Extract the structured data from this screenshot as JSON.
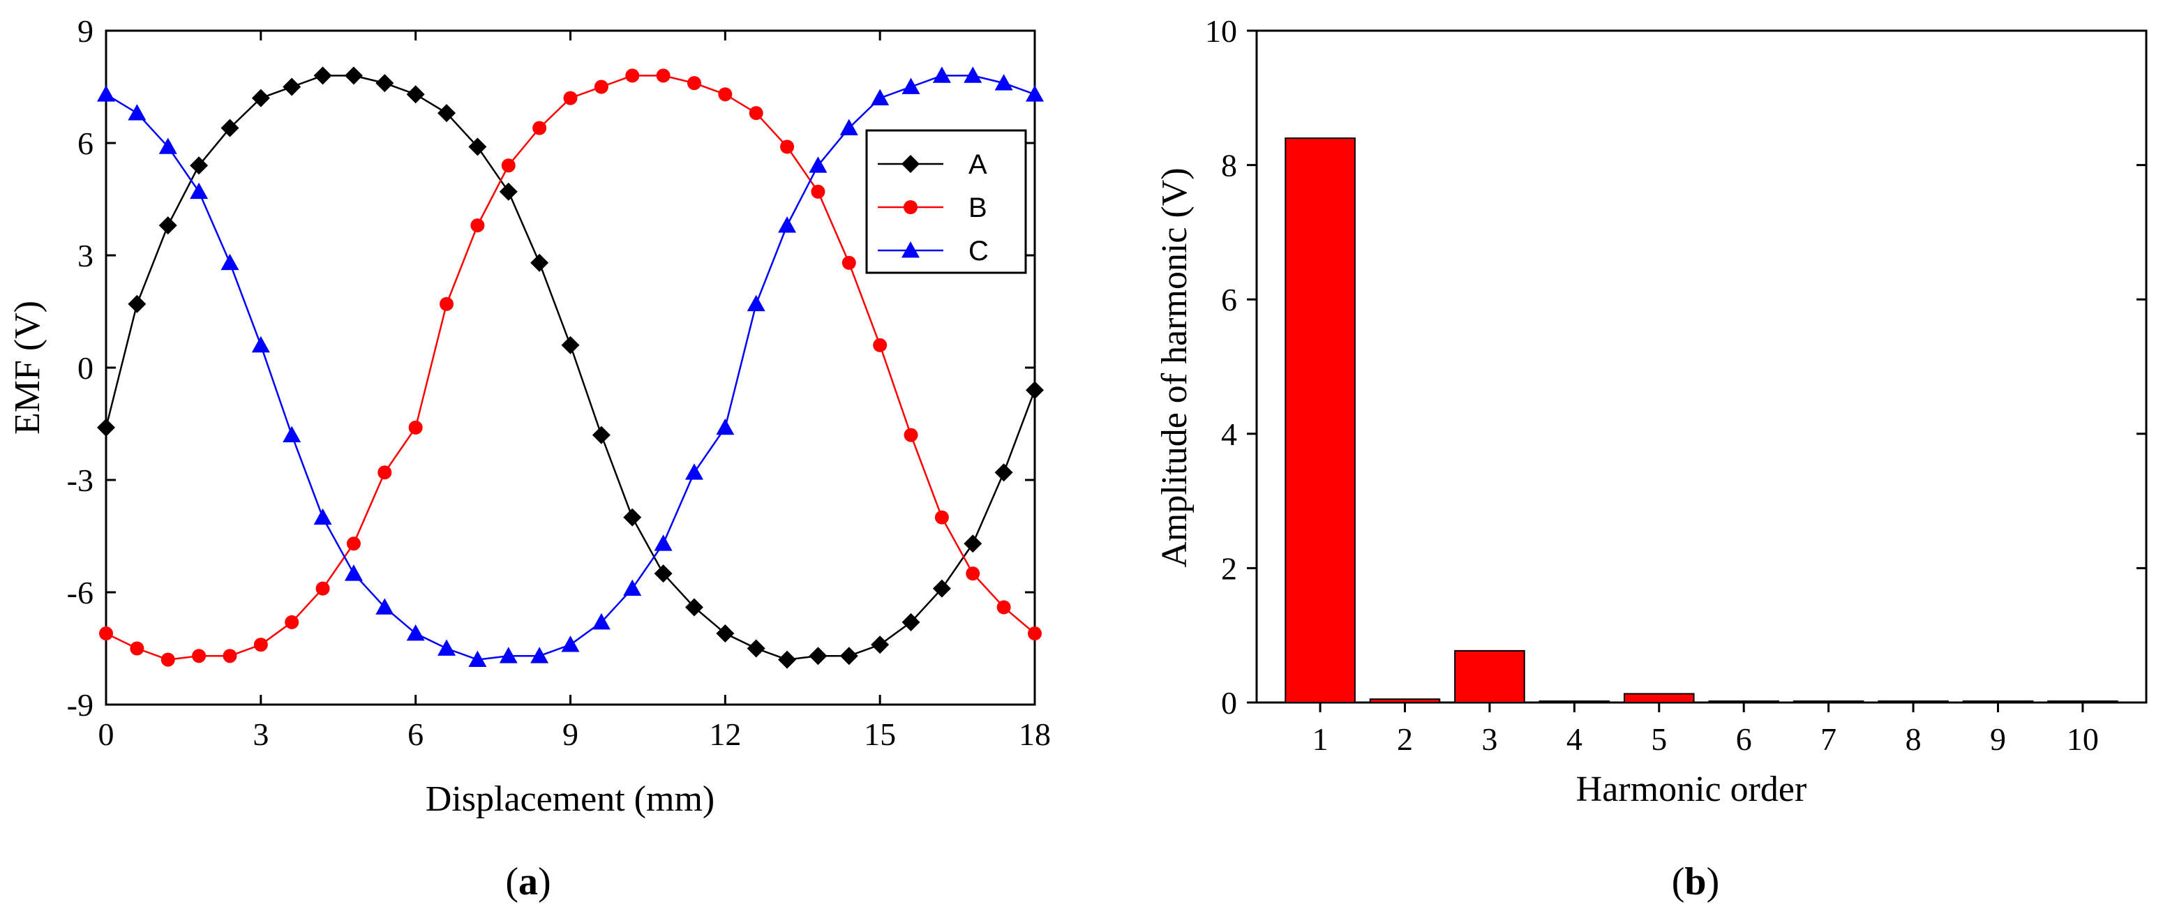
{
  "chart_data": [
    {
      "type": "line",
      "panel_label": "a",
      "title": "",
      "xlabel": "Displacement (mm)",
      "ylabel": "EMF (V)",
      "xlim": [
        0,
        18
      ],
      "ylim": [
        -9,
        9
      ],
      "xticks": [
        0,
        3,
        6,
        9,
        12,
        15,
        18
      ],
      "yticks": [
        -9,
        -6,
        -3,
        0,
        3,
        6,
        9
      ],
      "x": [
        0,
        0.6,
        1.2,
        1.8,
        2.4,
        3.0,
        3.6,
        4.2,
        4.8,
        5.4,
        6.0,
        6.6,
        7.2,
        7.8,
        8.4,
        9.0,
        9.6,
        10.2,
        10.8,
        11.4,
        12.0,
        12.6,
        13.2,
        13.8,
        14.4,
        15.0,
        15.6,
        16.2,
        16.8,
        17.4,
        18.0
      ],
      "series": [
        {
          "name": "A",
          "color": "#000000",
          "marker": "diamond",
          "values": [
            -1.6,
            1.7,
            3.8,
            5.4,
            6.4,
            7.2,
            7.5,
            7.8,
            7.8,
            7.6,
            7.3,
            6.8,
            5.9,
            4.7,
            2.8,
            0.6,
            -1.8,
            -4.0,
            -5.5,
            -6.4,
            -7.1,
            -7.5,
            -7.8,
            -7.7,
            -7.7,
            -7.4,
            -6.8,
            -5.9,
            -4.7,
            -2.8,
            -0.6
          ]
        },
        {
          "name": "B",
          "color": "#ff0000",
          "marker": "circle",
          "values": [
            -7.1,
            -7.5,
            -7.8,
            -7.7,
            -7.7,
            -7.4,
            -6.8,
            -5.9,
            -4.7,
            -2.8,
            -1.6,
            1.7,
            3.8,
            5.4,
            6.4,
            7.2,
            7.5,
            7.8,
            7.8,
            7.6,
            7.3,
            6.8,
            5.9,
            4.7,
            2.8,
            0.6,
            -1.8,
            -4.0,
            -5.5,
            -6.4,
            -7.1
          ]
        },
        {
          "name": "C",
          "color": "#0000ff",
          "marker": "triangle",
          "values": [
            7.3,
            6.8,
            5.9,
            4.7,
            2.8,
            0.6,
            -1.8,
            -4.0,
            -5.5,
            -6.4,
            -7.1,
            -7.5,
            -7.8,
            -7.7,
            -7.7,
            -7.4,
            -6.8,
            -5.9,
            -4.7,
            -2.8,
            -1.6,
            1.7,
            3.8,
            5.4,
            6.4,
            7.2,
            7.5,
            7.8,
            7.8,
            7.6,
            7.3
          ]
        }
      ],
      "legend": [
        "A",
        "B",
        "C"
      ],
      "legend_position": "top-right"
    },
    {
      "type": "bar",
      "panel_label": "b",
      "title": "",
      "xlabel": "Harmonic order",
      "ylabel": "Amplitude of harmonic  (V)",
      "ylim": [
        0,
        10
      ],
      "yticks": [
        0,
        2,
        4,
        6,
        8,
        10
      ],
      "categories": [
        "1",
        "2",
        "3",
        "4",
        "5",
        "6",
        "7",
        "8",
        "9",
        "10"
      ],
      "values": [
        8.4,
        0.05,
        0.77,
        0.02,
        0.13,
        0.02,
        0.02,
        0.02,
        0.02,
        0.02
      ],
      "color": "#ff0000"
    }
  ]
}
